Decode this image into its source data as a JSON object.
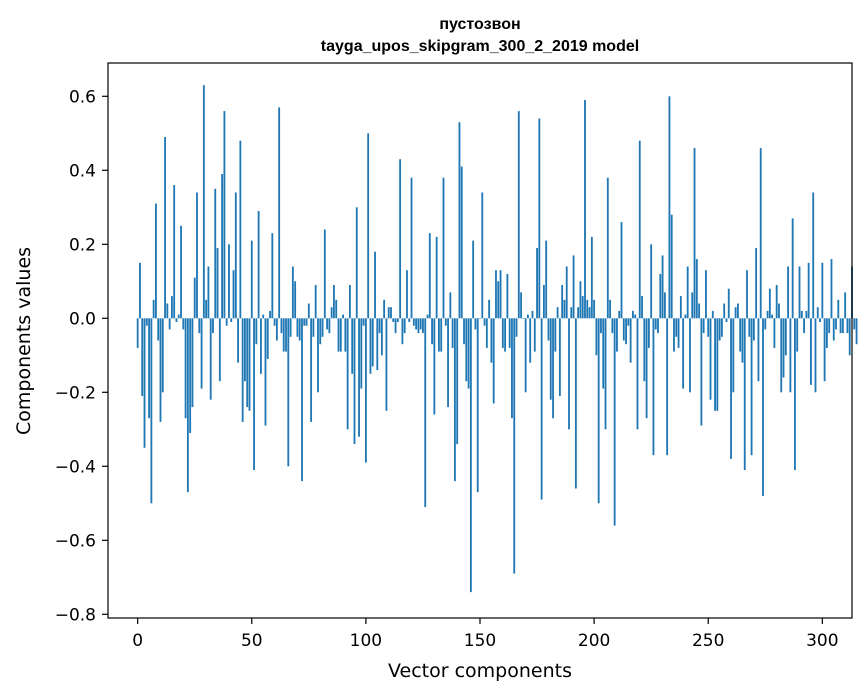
{
  "chart_data": {
    "type": "bar",
    "title": "пустозвон",
    "subtitle": "tayga_upos_skipgram_300_2_2019 model",
    "xlabel": "Vector components",
    "ylabel": "Components values",
    "xlim": [
      -13,
      313
    ],
    "ylim": [
      -0.81,
      0.69
    ],
    "xticks": [
      0,
      50,
      100,
      150,
      200,
      250,
      300
    ],
    "xtick_labels": [
      "0",
      "50",
      "100",
      "150",
      "200",
      "250",
      "300"
    ],
    "yticks": [
      -0.8,
      -0.6,
      -0.4,
      -0.2,
      0.0,
      0.2,
      0.4,
      0.6
    ],
    "ytick_labels": [
      "−0.8",
      "−0.6",
      "−0.4",
      "−0.2",
      "0.0",
      "0.2",
      "0.4",
      "0.6"
    ],
    "grid": false,
    "color": "#1f77b4",
    "values": [
      -0.08,
      0.15,
      -0.21,
      -0.35,
      -0.02,
      -0.27,
      -0.5,
      0.05,
      0.31,
      -0.06,
      -0.28,
      -0.2,
      0.49,
      0.04,
      -0.03,
      0.06,
      0.36,
      -0.01,
      0.01,
      0.25,
      -0.03,
      -0.27,
      -0.47,
      -0.31,
      -0.24,
      0.11,
      0.34,
      -0.04,
      -0.19,
      0.63,
      0.05,
      0.14,
      -0.22,
      -0.04,
      0.35,
      0.19,
      -0.17,
      0.39,
      0.56,
      -0.02,
      0.2,
      -0.01,
      0.13,
      0.34,
      -0.12,
      0.48,
      -0.28,
      -0.17,
      -0.24,
      -0.25,
      0.21,
      -0.41,
      -0.07,
      0.29,
      -0.15,
      0.01,
      -0.29,
      -0.11,
      0.02,
      0.23,
      -0.02,
      -0.06,
      0.57,
      -0.04,
      -0.09,
      -0.09,
      -0.4,
      -0.05,
      0.14,
      0.1,
      -0.05,
      -0.06,
      -0.44,
      -0.02,
      -0.02,
      0.04,
      -0.28,
      -0.05,
      0.09,
      -0.2,
      -0.07,
      -0.05,
      0.24,
      -0.03,
      -0.04,
      0.03,
      0.09,
      0.05,
      -0.09,
      -0.09,
      0.01,
      -0.09,
      -0.3,
      0.09,
      -0.15,
      -0.34,
      0.3,
      -0.32,
      -0.19,
      -0.02,
      -0.39,
      0.5,
      -0.15,
      -0.13,
      0.18,
      -0.14,
      -0.04,
      -0.1,
      0.05,
      -0.25,
      0.03,
      0.03,
      -0.01,
      -0.04,
      -0.01,
      0.43,
      -0.07,
      -0.04,
      0.13,
      -0.01,
      0.38,
      -0.02,
      -0.03,
      -0.04,
      -0.03,
      -0.04,
      -0.51,
      0.01,
      0.23,
      -0.07,
      -0.26,
      0.22,
      -0.09,
      -0.09,
      0.38,
      -0.02,
      -0.24,
      0.07,
      -0.08,
      -0.44,
      -0.34,
      0.53,
      0.41,
      -0.07,
      -0.17,
      -0.19,
      -0.74,
      0.21,
      -0.03,
      -0.47,
      0.0,
      0.34,
      -0.02,
      -0.08,
      0.05,
      -0.12,
      -0.23,
      0.13,
      0.1,
      0.13,
      -0.08,
      -0.09,
      0.12,
      -0.08,
      -0.27,
      -0.69,
      -0.05,
      0.56,
      0.07,
      0.0,
      -0.2,
      0.01,
      -0.12,
      0.02,
      -0.09,
      0.19,
      0.54,
      -0.49,
      0.09,
      0.21,
      -0.06,
      -0.22,
      -0.27,
      -0.09,
      0.03,
      -0.21,
      0.09,
      0.05,
      0.14,
      -0.3,
      0.03,
      0.17,
      -0.46,
      0.03,
      0.1,
      0.06,
      0.59,
      0.05,
      0.03,
      0.22,
      0.05,
      -0.1,
      -0.5,
      -0.04,
      -0.19,
      -0.3,
      0.38,
      0.05,
      -0.04,
      -0.56,
      -0.09,
      0.02,
      0.26,
      -0.06,
      -0.07,
      -0.02,
      -0.12,
      0.02,
      0.01,
      -0.3,
      0.48,
      0.06,
      -0.17,
      -0.27,
      -0.08,
      0.2,
      -0.37,
      -0.03,
      -0.04,
      0.12,
      0.17,
      0.07,
      -0.37,
      0.6,
      0.28,
      -0.09,
      -0.05,
      -0.08,
      0.06,
      -0.19,
      0.01,
      0.14,
      -0.2,
      0.07,
      0.46,
      0.16,
      0.04,
      -0.29,
      -0.04,
      0.13,
      -0.05,
      -0.22,
      0.02,
      -0.25,
      -0.25,
      -0.06,
      -0.05,
      0.04,
      -0.01,
      0.08,
      -0.38,
      -0.2,
      0.03,
      0.04,
      -0.09,
      -0.12,
      -0.41,
      0.13,
      -0.05,
      -0.37,
      -0.06,
      0.19,
      -0.17,
      0.46,
      -0.48,
      -0.03,
      0.02,
      0.08,
      0.01,
      -0.08,
      0.09,
      0.04,
      -0.2,
      -0.16,
      -0.1,
      0.14,
      -0.2,
      0.27,
      -0.41,
      -0.09,
      0.14,
      0.02,
      -0.04,
      0.02,
      0.15,
      -0.18,
      0.34,
      -0.2,
      0.03,
      -0.01,
      0.15,
      -0.17,
      -0.08,
      -0.04,
      0.16,
      -0.06,
      -0.03,
      0.05,
      -0.04,
      -0.04,
      0.07,
      -0.04,
      -0.1,
      0.14,
      -0.03,
      -0.07
    ]
  }
}
